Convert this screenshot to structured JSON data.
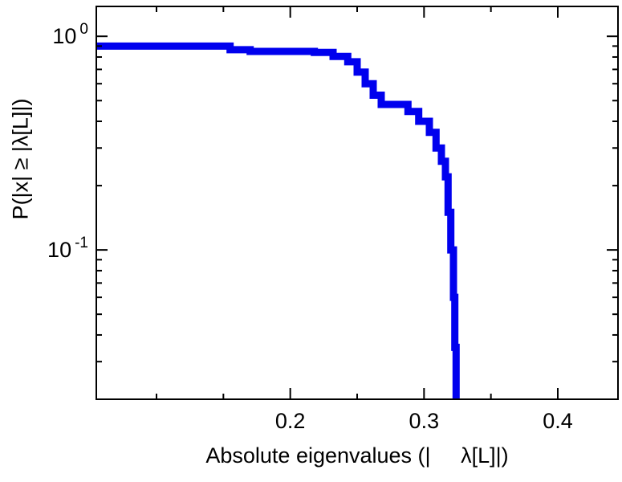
{
  "figure": {
    "background": "#ffffff",
    "frame_color": "#000000",
    "text_color": "#000000",
    "curve_color": "#0000ee"
  },
  "labels": {
    "xlabel": "Absolute eigenvalues (|     λ[L]|)",
    "ylabel": "P(|x| ≥ |λ[L]|)"
  },
  "chart_data": {
    "type": "line",
    "style": "empirical-ccdf-step",
    "title": "",
    "xlabel": "Absolute eigenvalues (|λ[L]|)",
    "ylabel": "P(|x| ≥ |λ[L]|)",
    "xlim": [
      0.055,
      0.445
    ],
    "ylim": [
      0.02,
      1.38
    ],
    "xscale": "linear",
    "yscale": "log",
    "grid": false,
    "legend": null,
    "x_major_ticks": [
      0.2,
      0.3,
      0.4
    ],
    "x_major_labels": [
      "0.2",
      "0.3",
      "0.4"
    ],
    "x_minor_ticks": [
      0.1,
      0.15,
      0.25,
      0.35
    ],
    "y_major_ticks": [
      1,
      0.1
    ],
    "y_major_labels": [
      {
        "value": 1,
        "base": "10",
        "exp": "0"
      },
      {
        "value": 0.1,
        "base": "10",
        "exp": "-1"
      }
    ],
    "y_minor_ticks": [
      0.9,
      0.8,
      0.7,
      0.6,
      0.5,
      0.4,
      0.3,
      0.2,
      0.09,
      0.08,
      0.07,
      0.06,
      0.05,
      0.04,
      0.03,
      0.02
    ],
    "series": [
      {
        "name": "ccdf-of-absolute-eigenvalues",
        "color": "#0000ee",
        "line_width": 9,
        "points": [
          [
            0.055,
            0.9
          ],
          [
            0.155,
            0.9
          ],
          [
            0.155,
            0.865
          ],
          [
            0.17,
            0.865
          ],
          [
            0.17,
            0.85
          ],
          [
            0.218,
            0.85
          ],
          [
            0.218,
            0.84
          ],
          [
            0.232,
            0.84
          ],
          [
            0.232,
            0.805
          ],
          [
            0.243,
            0.805
          ],
          [
            0.243,
            0.76
          ],
          [
            0.25,
            0.76
          ],
          [
            0.25,
            0.68
          ],
          [
            0.256,
            0.68
          ],
          [
            0.256,
            0.6
          ],
          [
            0.262,
            0.6
          ],
          [
            0.262,
            0.53
          ],
          [
            0.268,
            0.53
          ],
          [
            0.268,
            0.48
          ],
          [
            0.288,
            0.48
          ],
          [
            0.288,
            0.445
          ],
          [
            0.296,
            0.445
          ],
          [
            0.296,
            0.4
          ],
          [
            0.304,
            0.4
          ],
          [
            0.304,
            0.355
          ],
          [
            0.309,
            0.355
          ],
          [
            0.309,
            0.3
          ],
          [
            0.313,
            0.3
          ],
          [
            0.313,
            0.26
          ],
          [
            0.316,
            0.26
          ],
          [
            0.316,
            0.22
          ],
          [
            0.318,
            0.22
          ],
          [
            0.318,
            0.15
          ],
          [
            0.32,
            0.15
          ],
          [
            0.32,
            0.1
          ],
          [
            0.322,
            0.1
          ],
          [
            0.322,
            0.06
          ],
          [
            0.323,
            0.06
          ],
          [
            0.323,
            0.035
          ],
          [
            0.324,
            0.035
          ],
          [
            0.324,
            0.015
          ]
        ]
      }
    ]
  }
}
